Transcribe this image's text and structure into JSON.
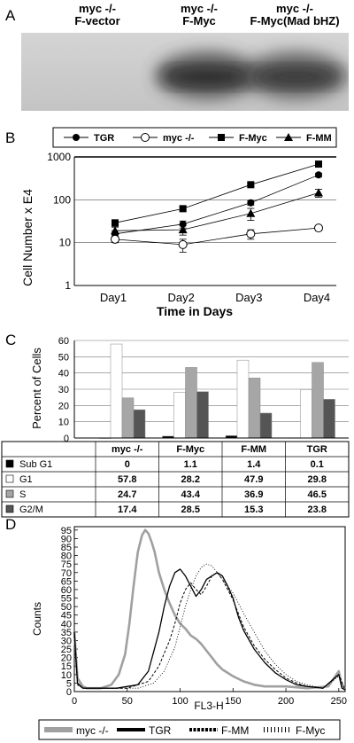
{
  "panelA": {
    "letter": "A",
    "lanes": [
      {
        "line1": "myc -/-",
        "line2": "F-vector",
        "intensity": 0.05
      },
      {
        "line1": "myc -/-",
        "line2": "F-Myc",
        "intensity": 0.85
      },
      {
        "line1": "myc -/-",
        "line2": "F-Myc(Mad bHZ)",
        "intensity": 0.75
      }
    ]
  },
  "chart_data": [
    {
      "panel": "B",
      "type": "line",
      "scale": "log",
      "categories": [
        "Day1",
        "Day2",
        "Day3",
        "Day4"
      ],
      "xlabel": "Time in Days",
      "ylabel": "Cell Number x E4",
      "yticks": [
        "1",
        "10",
        "100",
        "1000"
      ],
      "ylim": [
        1,
        1000
      ],
      "grid": true,
      "legend": "top",
      "series": [
        {
          "name": "TGR",
          "marker": "filled-circle",
          "values": [
            16,
            27,
            85,
            380
          ],
          "err": [
            3,
            5,
            10,
            40
          ]
        },
        {
          "name": "myc -/-",
          "marker": "open-circle",
          "values": [
            12,
            9,
            16,
            22
          ],
          "err": [
            2,
            3,
            4,
            3
          ]
        },
        {
          "name": "F-Myc",
          "marker": "filled-square",
          "values": [
            29,
            62,
            225,
            680
          ],
          "err": [
            5,
            7,
            15,
            80
          ]
        },
        {
          "name": "F-MM",
          "marker": "filled-triangle",
          "values": [
            19,
            20,
            48,
            145
          ],
          "err": [
            4,
            5,
            15,
            30
          ]
        }
      ]
    },
    {
      "panel": "C",
      "type": "bar",
      "ylabel": "Percent of Cells",
      "yticks": [
        "0",
        "10",
        "20",
        "30",
        "40",
        "50",
        "60"
      ],
      "ylim": [
        0,
        60
      ],
      "grid": true,
      "categories": [
        "myc -/-",
        "F-Myc",
        "F-MM",
        "TGR"
      ],
      "series": [
        {
          "name": "Sub G1",
          "color": "#000000",
          "values": [
            0,
            1.1,
            1.4,
            0.1
          ],
          "labels": [
            "0",
            "1.1",
            "1.4",
            "0.1"
          ]
        },
        {
          "name": "G1",
          "color": "#ffffff",
          "values": [
            57.8,
            28.2,
            47.9,
            29.8
          ],
          "labels": [
            "57.8",
            "28.2",
            "47.9",
            "29.8"
          ]
        },
        {
          "name": "S",
          "color": "#a6a6a6",
          "values": [
            24.7,
            43.4,
            36.9,
            46.5
          ],
          "labels": [
            "24.7",
            "43.4",
            "36.9",
            "46.5"
          ]
        },
        {
          "name": "G2/M",
          "color": "#555555",
          "values": [
            17.4,
            28.5,
            15.3,
            23.8
          ],
          "labels": [
            "17.4",
            "28.5",
            "15.3",
            "23.8"
          ]
        }
      ]
    },
    {
      "panel": "D",
      "type": "line",
      "xlabel": "FL3-H",
      "ylabel": "Counts",
      "xticks": [
        "0",
        "50",
        "100",
        "150",
        "200",
        "250"
      ],
      "yticks": [
        "0",
        "5",
        "10",
        "15",
        "20",
        "25",
        "30",
        "35",
        "40",
        "45",
        "50",
        "55",
        "60",
        "65",
        "70",
        "75",
        "80",
        "85",
        "90",
        "95"
      ],
      "xlim": [
        0,
        256
      ],
      "ylim": [
        0,
        97
      ],
      "legend": "bottom",
      "series": [
        {
          "name": "myc -/-",
          "style": "thick-gray",
          "x": [
            0,
            3,
            8,
            12,
            25,
            35,
            42,
            48,
            52,
            56,
            60,
            64,
            67,
            70,
            73,
            76,
            80,
            85,
            90,
            95,
            100,
            105,
            110,
            115,
            120,
            125,
            130,
            135,
            140,
            150,
            160,
            170,
            180,
            200,
            220,
            240,
            250,
            253,
            256
          ],
          "y": [
            35,
            8,
            3,
            2,
            2,
            4,
            10,
            22,
            40,
            62,
            82,
            92,
            95,
            93,
            88,
            82,
            70,
            60,
            52,
            45,
            40,
            37,
            33,
            31,
            28,
            24,
            20,
            16,
            13,
            9,
            6,
            4,
            3,
            3,
            2,
            3,
            12,
            3,
            2
          ]
        },
        {
          "name": "TGR",
          "style": "solid-black",
          "x": [
            0,
            3,
            8,
            40,
            60,
            70,
            80,
            85,
            90,
            95,
            100,
            105,
            110,
            115,
            120,
            125,
            130,
            135,
            140,
            145,
            150,
            155,
            160,
            170,
            180,
            190,
            200,
            210,
            220,
            235,
            250,
            253,
            256
          ],
          "y": [
            35,
            5,
            2,
            2,
            4,
            12,
            35,
            50,
            62,
            70,
            72,
            68,
            62,
            56,
            60,
            66,
            68,
            70,
            68,
            62,
            55,
            44,
            36,
            25,
            17,
            11,
            7,
            4,
            3,
            2,
            10,
            2,
            1
          ]
        },
        {
          "name": "F-MM",
          "style": "dashed-black",
          "x": [
            0,
            3,
            8,
            50,
            70,
            80,
            90,
            95,
            100,
            105,
            110,
            115,
            120,
            125,
            130,
            135,
            140,
            145,
            150,
            155,
            160,
            170,
            180,
            190,
            200,
            210,
            220,
            235,
            250,
            256
          ],
          "y": [
            33,
            4,
            2,
            2,
            6,
            15,
            30,
            40,
            52,
            60,
            64,
            60,
            57,
            62,
            68,
            70,
            66,
            60,
            54,
            46,
            38,
            27,
            19,
            13,
            8,
            5,
            3,
            2,
            10,
            1
          ]
        },
        {
          "name": "F-Myc",
          "style": "dotted-black",
          "x": [
            0,
            3,
            8,
            60,
            75,
            85,
            95,
            100,
            105,
            110,
            115,
            120,
            125,
            130,
            135,
            140,
            145,
            150,
            155,
            160,
            170,
            180,
            190,
            200,
            210,
            220,
            235,
            250,
            256
          ],
          "y": [
            32,
            4,
            2,
            2,
            5,
            12,
            26,
            38,
            50,
            60,
            68,
            73,
            75,
            74,
            70,
            66,
            62,
            58,
            52,
            46,
            35,
            24,
            16,
            10,
            6,
            4,
            2,
            9,
            1
          ]
        }
      ]
    }
  ],
  "panelB": {
    "letter": "B"
  },
  "panelC": {
    "letter": "C"
  },
  "panelD": {
    "letter": "D"
  }
}
